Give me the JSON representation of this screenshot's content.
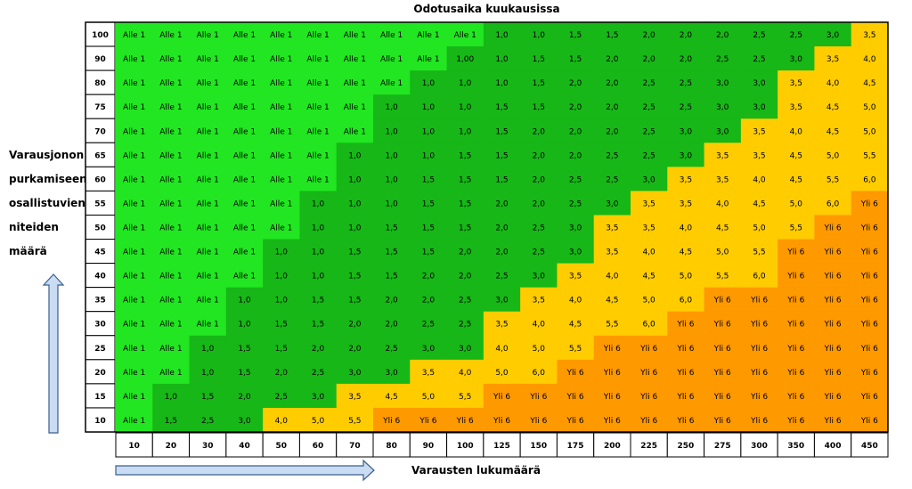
{
  "chart_data": {
    "type": "heatmap",
    "title": "Odotusaika kuukausissa",
    "xlabel": "Varausten lukumäärä",
    "ylabel_lines": [
      "Varausjonon",
      "purkamiseen",
      "osallistuvien",
      "niteiden",
      "määrä"
    ],
    "x": [
      "10",
      "20",
      "30",
      "40",
      "50",
      "60",
      "70",
      "80",
      "90",
      "100",
      "125",
      "150",
      "175",
      "200",
      "225",
      "250",
      "275",
      "300",
      "350",
      "400",
      "450"
    ],
    "y": [
      "100",
      "90",
      "80",
      "75",
      "70",
      "65",
      "60",
      "55",
      "50",
      "45",
      "40",
      "35",
      "30",
      "25",
      "20",
      "15",
      "10"
    ],
    "values": [
      [
        "Alle 1",
        "Alle 1",
        "Alle 1",
        "Alle 1",
        "Alle 1",
        "Alle 1",
        "Alle 1",
        "Alle 1",
        "Alle 1",
        "Alle 1",
        "1,0",
        "1,0",
        "1,5",
        "1,5",
        "2,0",
        "2,0",
        "2,0",
        "2,5",
        "2,5",
        "3,0",
        "3,5"
      ],
      [
        "Alle 1",
        "Alle 1",
        "Alle 1",
        "Alle 1",
        "Alle 1",
        "Alle 1",
        "Alle 1",
        "Alle 1",
        "Alle 1",
        "1,00",
        "1,0",
        "1,5",
        "1,5",
        "2,0",
        "2,0",
        "2,0",
        "2,5",
        "2,5",
        "3,0",
        "3,5",
        "4,0"
      ],
      [
        "Alle 1",
        "Alle 1",
        "Alle 1",
        "Alle 1",
        "Alle 1",
        "Alle 1",
        "Alle 1",
        "Alle 1",
        "1,0",
        "1,0",
        "1,0",
        "1,5",
        "2,0",
        "2,0",
        "2,5",
        "2,5",
        "3,0",
        "3,0",
        "3,5",
        "4,0",
        "4,5"
      ],
      [
        "Alle 1",
        "Alle 1",
        "Alle 1",
        "Alle 1",
        "Alle 1",
        "Alle 1",
        "Alle 1",
        "1,0",
        "1,0",
        "1,0",
        "1,5",
        "1,5",
        "2,0",
        "2,0",
        "2,5",
        "2,5",
        "3,0",
        "3,0",
        "3,5",
        "4,5",
        "5,0"
      ],
      [
        "Alle 1",
        "Alle 1",
        "Alle 1",
        "Alle 1",
        "Alle 1",
        "Alle 1",
        "Alle 1",
        "1,0",
        "1,0",
        "1,0",
        "1,5",
        "2,0",
        "2,0",
        "2,0",
        "2,5",
        "3,0",
        "3,0",
        "3,5",
        "4,0",
        "4,5",
        "5,0"
      ],
      [
        "Alle 1",
        "Alle 1",
        "Alle 1",
        "Alle 1",
        "Alle 1",
        "Alle 1",
        "1,0",
        "1,0",
        "1,0",
        "1,5",
        "1,5",
        "2,0",
        "2,0",
        "2,5",
        "2,5",
        "3,0",
        "3,5",
        "3,5",
        "4,5",
        "5,0",
        "5,5"
      ],
      [
        "Alle 1",
        "Alle 1",
        "Alle 1",
        "Alle 1",
        "Alle 1",
        "Alle 1",
        "1,0",
        "1,0",
        "1,5",
        "1,5",
        "1,5",
        "2,0",
        "2,5",
        "2,5",
        "3,0",
        "3,5",
        "3,5",
        "4,0",
        "4,5",
        "5,5",
        "6,0"
      ],
      [
        "Alle 1",
        "Alle 1",
        "Alle 1",
        "Alle 1",
        "Alle 1",
        "1,0",
        "1,0",
        "1,0",
        "1,5",
        "1,5",
        "2,0",
        "2,0",
        "2,5",
        "3,0",
        "3,5",
        "3,5",
        "4,0",
        "4,5",
        "5,0",
        "6,0",
        "Yli 6"
      ],
      [
        "Alle 1",
        "Alle 1",
        "Alle 1",
        "Alle 1",
        "Alle 1",
        "1,0",
        "1,0",
        "1,5",
        "1,5",
        "1,5",
        "2,0",
        "2,5",
        "3,0",
        "3,5",
        "3,5",
        "4,0",
        "4,5",
        "5,0",
        "5,5",
        "Yli 6",
        "Yli 6"
      ],
      [
        "Alle 1",
        "Alle 1",
        "Alle 1",
        "Alle 1",
        "1,0",
        "1,0",
        "1,5",
        "1,5",
        "1,5",
        "2,0",
        "2,0",
        "2,5",
        "3,0",
        "3,5",
        "4,0",
        "4,5",
        "5,0",
        "5,5",
        "Yli 6",
        "Yli 6",
        "Yli 6"
      ],
      [
        "Alle 1",
        "Alle 1",
        "Alle 1",
        "Alle 1",
        "1,0",
        "1,0",
        "1,5",
        "1,5",
        "2,0",
        "2,0",
        "2,5",
        "3,0",
        "3,5",
        "4,0",
        "4,5",
        "5,0",
        "5,5",
        "6,0",
        "Yli 6",
        "Yli 6",
        "Yli 6"
      ],
      [
        "Alle 1",
        "Alle 1",
        "Alle 1",
        "1,0",
        "1,0",
        "1,5",
        "1,5",
        "2,0",
        "2,0",
        "2,5",
        "3,0",
        "3,5",
        "4,0",
        "4,5",
        "5,0",
        "6,0",
        "Yli 6",
        "Yli 6",
        "Yli 6",
        "Yli 6",
        "Yli 6"
      ],
      [
        "Alle 1",
        "Alle 1",
        "Alle 1",
        "1,0",
        "1,5",
        "1,5",
        "2,0",
        "2,0",
        "2,5",
        "2,5",
        "3,5",
        "4,0",
        "4,5",
        "5,5",
        "6,0",
        "Yli 6",
        "Yli 6",
        "Yli 6",
        "Yli 6",
        "Yli 6",
        "Yli 6"
      ],
      [
        "Alle 1",
        "Alle 1",
        "1,0",
        "1,5",
        "1,5",
        "2,0",
        "2,0",
        "2,5",
        "3,0",
        "3,0",
        "4,0",
        "5,0",
        "5,5",
        "Yli 6",
        "Yli 6",
        "Yli 6",
        "Yli 6",
        "Yli 6",
        "Yli 6",
        "Yli 6",
        "Yli 6"
      ],
      [
        "Alle 1",
        "Alle 1",
        "1,0",
        "1,5",
        "2,0",
        "2,5",
        "3,0",
        "3,0",
        "3,5",
        "4,0",
        "5,0",
        "6,0",
        "Yli 6",
        "Yli 6",
        "Yli 6",
        "Yli 6",
        "Yli 6",
        "Yli 6",
        "Yli 6",
        "Yli 6",
        "Yli 6"
      ],
      [
        "Alle 1",
        "1,0",
        "1,5",
        "2,0",
        "2,5",
        "3,0",
        "3,5",
        "4,5",
        "5,0",
        "5,5",
        "Yli 6",
        "Yli 6",
        "Yli 6",
        "Yli 6",
        "Yli 6",
        "Yli 6",
        "Yli 6",
        "Yli 6",
        "Yli 6",
        "Yli 6",
        "Yli 6"
      ],
      [
        "Alle 1",
        "1,5",
        "2,5",
        "3,0",
        "4,0",
        "5,0",
        "5,5",
        "Yli 6",
        "Yli 6",
        "Yli 6",
        "Yli 6",
        "Yli 6",
        "Yli 6",
        "Yli 6",
        "Yli 6",
        "Yli 6",
        "Yli 6",
        "Yli 6",
        "Yli 6",
        "Yli 6",
        "Yli 6"
      ]
    ],
    "color_bands": {
      "under_1": "#22e622",
      "1_to_3": "#17b717",
      "3.5_to_6": "#ffcc00",
      "over_6": "#ff9900"
    },
    "arrow_color": "#c9dcf3",
    "arrow_stroke": "#3a5f8a"
  }
}
